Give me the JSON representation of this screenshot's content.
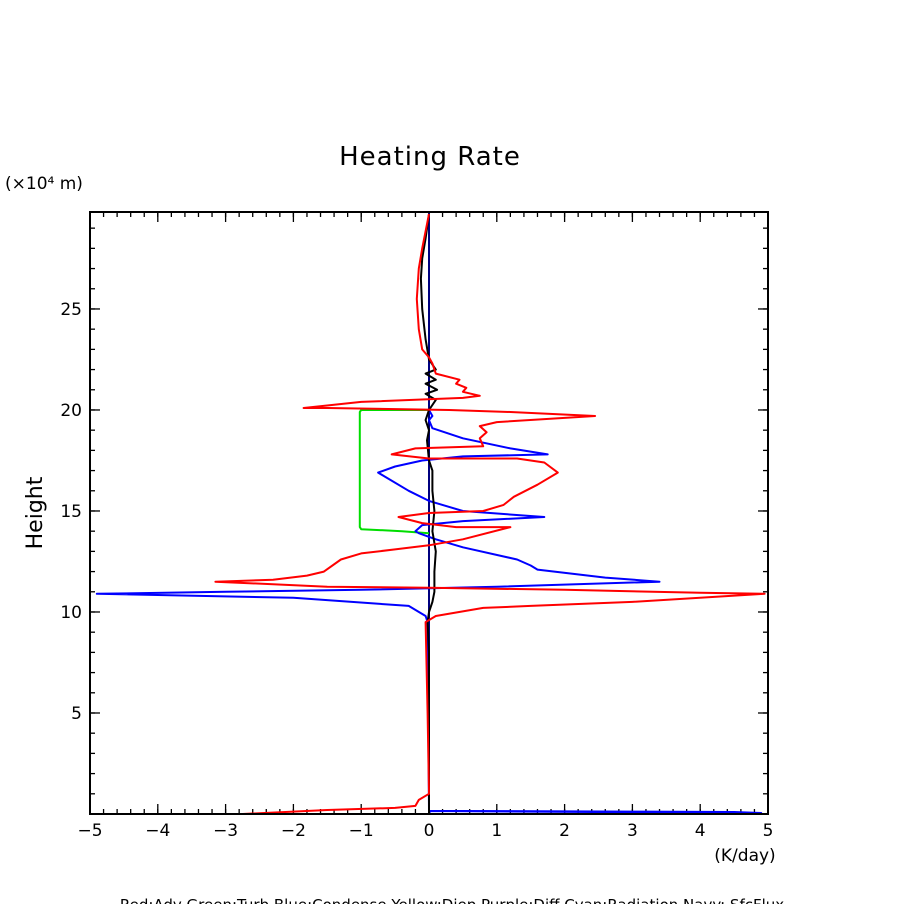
{
  "chart_data": {
    "type": "line",
    "title": "Heating Rate",
    "ylabel": "Height",
    "yunit": "(×10⁴ m)",
    "xlabel": "(K/day)",
    "xlim": [
      -5,
      5
    ],
    "ylim": [
      0,
      29.8
    ],
    "xticks": [
      -5,
      -4,
      -3,
      -2,
      -1,
      0,
      1,
      2,
      3,
      4,
      5
    ],
    "xtick_labels": [
      "−5",
      "−4",
      "−3",
      "−2",
      "−1",
      "0",
      "1",
      "2",
      "3",
      "4",
      "5"
    ],
    "yticks": [
      5,
      10,
      15,
      20,
      25
    ],
    "ytick_labels": [
      "5",
      "10",
      "15",
      "20",
      "25"
    ],
    "legend_text": "Red:Adv  Green:Turb  Blue:Condense  Yellow:Diep  Purple:Diff  Cyan:Radiation  Navy: SfcFlux",
    "series": [
      {
        "name": "Navy: SfcFlux",
        "color": "#00007f",
        "points": [
          [
            0,
            0
          ],
          [
            0,
            29.8
          ]
        ]
      },
      {
        "name": "Green:Turb",
        "color": "#00dd00",
        "points": [
          [
            0,
            20.0
          ],
          [
            -0.4,
            20.0
          ],
          [
            -1.0,
            20.0
          ],
          [
            -1.02,
            19.9
          ],
          [
            -1.02,
            14.2
          ],
          [
            -1.0,
            14.1
          ],
          [
            -0.4,
            14.0
          ],
          [
            0,
            13.9
          ]
        ]
      },
      {
        "name": "Blue:Condense",
        "color": "#0000ff",
        "points": [
          [
            0.0,
            0.05
          ],
          [
            0.02,
            0.15
          ],
          [
            0.5,
            0.15
          ],
          [
            3.2,
            0.12
          ],
          [
            4.5,
            0.1
          ],
          [
            4.9,
            0.05
          ],
          [
            0.0,
            0.15
          ],
          [
            -0.01,
            5.0
          ],
          [
            -0.02,
            9.5
          ],
          [
            -0.05,
            9.8
          ],
          [
            -0.3,
            10.3
          ],
          [
            -2.0,
            10.7
          ],
          [
            -4.9,
            10.9
          ],
          [
            -3.0,
            11.0
          ],
          [
            -1.0,
            11.1
          ],
          [
            1.0,
            11.25
          ],
          [
            3.4,
            11.5
          ],
          [
            2.6,
            11.7
          ],
          [
            1.6,
            12.1
          ],
          [
            1.5,
            12.3
          ],
          [
            1.3,
            12.6
          ],
          [
            0.5,
            13.2
          ],
          [
            0.1,
            13.6
          ],
          [
            -0.15,
            13.9
          ],
          [
            -0.2,
            14.0
          ],
          [
            -0.1,
            14.3
          ],
          [
            0.5,
            14.5
          ],
          [
            1.7,
            14.7
          ],
          [
            0.5,
            15.0
          ],
          [
            0.0,
            15.5
          ],
          [
            -0.3,
            16.0
          ],
          [
            -0.75,
            16.9
          ],
          [
            -0.5,
            17.2
          ],
          [
            -0.1,
            17.5
          ],
          [
            0.5,
            17.7
          ],
          [
            1.75,
            17.8
          ],
          [
            1.2,
            18.1
          ],
          [
            0.5,
            18.6
          ],
          [
            0.05,
            19.1
          ],
          [
            0.0,
            19.5
          ],
          [
            0.05,
            19.7
          ],
          [
            0.0,
            20.0
          ]
        ]
      },
      {
        "name": "Black",
        "color": "#000000",
        "points": [
          [
            0.0,
            0.0
          ],
          [
            0.0,
            8.0
          ],
          [
            -0.02,
            9.5
          ],
          [
            0.0,
            10.0
          ],
          [
            0.05,
            10.5
          ],
          [
            0.08,
            11.0
          ],
          [
            0.08,
            12.0
          ],
          [
            0.1,
            13.0
          ],
          [
            0.05,
            14.0
          ],
          [
            0.08,
            15.0
          ],
          [
            0.05,
            16.0
          ],
          [
            0.05,
            17.0
          ],
          [
            0.0,
            17.5
          ],
          [
            -0.03,
            18.5
          ],
          [
            0.0,
            19.0
          ],
          [
            -0.05,
            19.5
          ],
          [
            0.0,
            20.0
          ],
          [
            0.1,
            20.5
          ],
          [
            -0.05,
            20.8
          ],
          [
            0.12,
            21.0
          ],
          [
            -0.05,
            21.3
          ],
          [
            0.1,
            21.5
          ],
          [
            -0.05,
            21.8
          ],
          [
            0.1,
            22.0
          ],
          [
            0.0,
            22.5
          ],
          [
            -0.05,
            23.5
          ],
          [
            -0.1,
            25.0
          ],
          [
            -0.12,
            26.5
          ],
          [
            -0.1,
            27.5
          ],
          [
            -0.05,
            28.5
          ],
          [
            0.0,
            29.7
          ]
        ]
      },
      {
        "name": "Red:Adv",
        "color": "#ff0000",
        "points": [
          [
            -2.75,
            0.0
          ],
          [
            -1.5,
            0.2
          ],
          [
            -0.5,
            0.3
          ],
          [
            -0.2,
            0.4
          ],
          [
            -0.15,
            0.7
          ],
          [
            0.0,
            1.0
          ],
          [
            -0.02,
            5.0
          ],
          [
            -0.05,
            9.5
          ],
          [
            0.1,
            9.8
          ],
          [
            0.8,
            10.2
          ],
          [
            1.5,
            10.3
          ],
          [
            3.0,
            10.5
          ],
          [
            4.95,
            10.9
          ],
          [
            4.0,
            10.95
          ],
          [
            2.0,
            11.1
          ],
          [
            0.0,
            11.2
          ],
          [
            -1.5,
            11.25
          ],
          [
            -3.15,
            11.5
          ],
          [
            -2.3,
            11.6
          ],
          [
            -1.8,
            11.8
          ],
          [
            -1.55,
            12.0
          ],
          [
            -1.3,
            12.6
          ],
          [
            -1.0,
            12.9
          ],
          [
            -0.5,
            13.1
          ],
          [
            0.0,
            13.3
          ],
          [
            0.5,
            13.6
          ],
          [
            1.2,
            14.2
          ],
          [
            0.4,
            14.2
          ],
          [
            -0.1,
            14.4
          ],
          [
            -0.45,
            14.7
          ],
          [
            0.0,
            14.9
          ],
          [
            0.8,
            15.0
          ],
          [
            1.1,
            15.3
          ],
          [
            1.25,
            15.7
          ],
          [
            1.6,
            16.3
          ],
          [
            1.9,
            16.9
          ],
          [
            1.7,
            17.4
          ],
          [
            1.3,
            17.6
          ],
          [
            0.8,
            17.6
          ],
          [
            0.0,
            17.6
          ],
          [
            -0.55,
            17.8
          ],
          [
            -0.2,
            18.1
          ],
          [
            0.8,
            18.2
          ],
          [
            0.75,
            18.6
          ],
          [
            0.85,
            18.9
          ],
          [
            0.75,
            19.2
          ],
          [
            1.0,
            19.4
          ],
          [
            2.45,
            19.7
          ],
          [
            1.2,
            19.9
          ],
          [
            0.3,
            20.0
          ],
          [
            -1.5,
            20.1
          ],
          [
            -1.85,
            20.1
          ],
          [
            -1.0,
            20.4
          ],
          [
            0.5,
            20.6
          ],
          [
            0.75,
            20.7
          ],
          [
            0.5,
            20.9
          ],
          [
            0.55,
            21.1
          ],
          [
            0.4,
            21.3
          ],
          [
            0.45,
            21.5
          ],
          [
            0.1,
            21.8
          ],
          [
            0.05,
            22.3
          ],
          [
            0.0,
            22.6
          ],
          [
            -0.1,
            23.0
          ],
          [
            -0.15,
            24.0
          ],
          [
            -0.18,
            25.5
          ],
          [
            -0.15,
            27.0
          ],
          [
            -0.1,
            28.0
          ],
          [
            0.0,
            29.7
          ]
        ]
      }
    ]
  }
}
